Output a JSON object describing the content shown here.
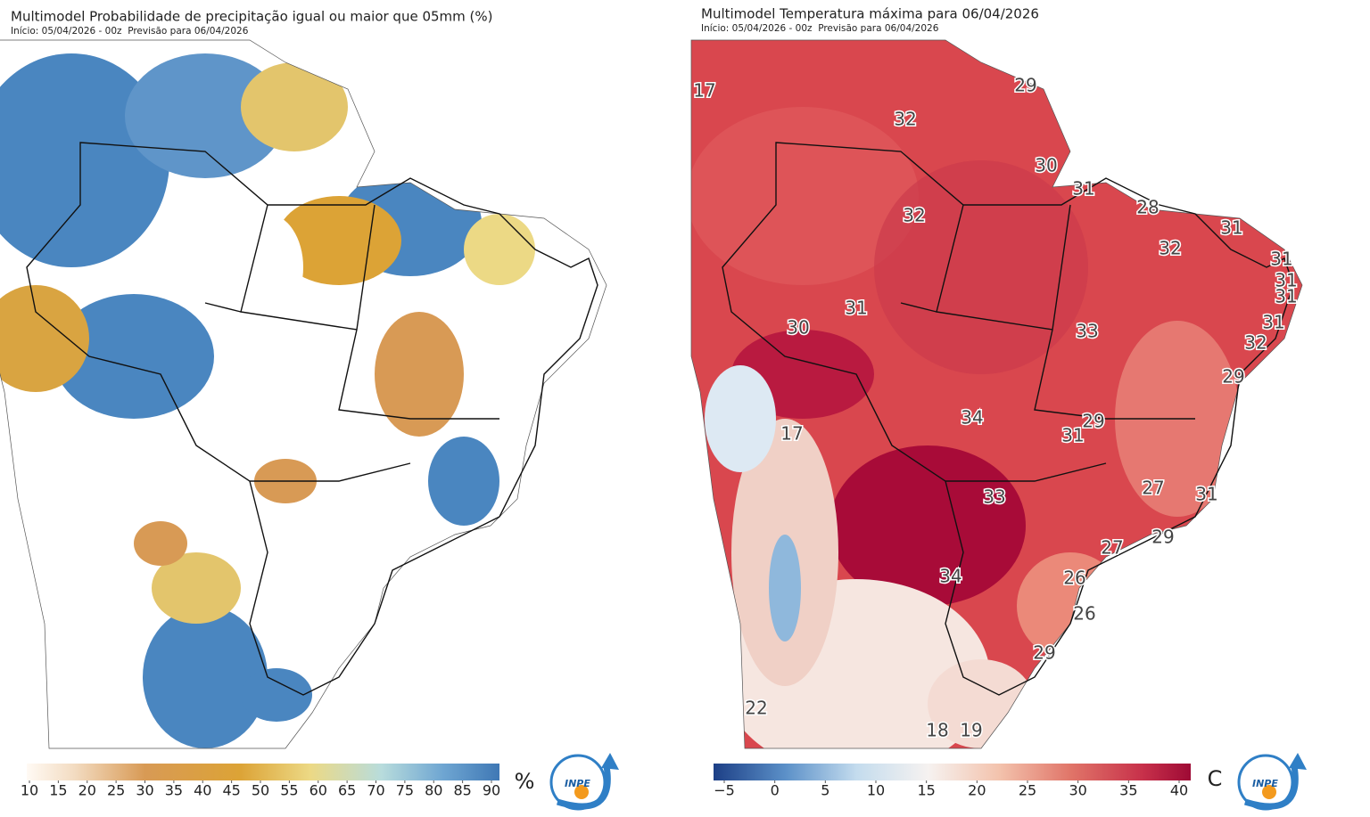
{
  "panels": [
    {
      "title": "Multimodel Probabilidade de precipitação igual ou maior que 05mm (%)",
      "subtitle": "Início: 05/04/2026 - 00z  Previsão para 06/04/2026",
      "colorbar": {
        "ticks": [
          10,
          15,
          20,
          25,
          30,
          35,
          40,
          45,
          50,
          55,
          60,
          65,
          70,
          75,
          80,
          85,
          90
        ],
        "unit": "%"
      },
      "logo": "INPE"
    },
    {
      "title": "Multimodel Temperatura máxima para 06/04/2026",
      "subtitle": "Início: 05/04/2026 - 00z  Previsão para 06/04/2026",
      "colorbar": {
        "ticks": [
          {
            "value": -5,
            "label": "−5"
          },
          0,
          5,
          10,
          15,
          20,
          25,
          30,
          35,
          40
        ],
        "unit": "C"
      },
      "logo": "INPE",
      "map_labels": [
        17,
        29,
        32,
        30,
        31,
        28,
        32,
        31,
        32,
        31,
        31,
        31,
        31,
        30,
        33,
        31,
        32,
        29,
        34,
        29,
        31,
        17,
        27,
        33,
        31,
        29,
        27,
        34,
        26,
        26,
        29,
        22,
        18,
        19
      ]
    }
  ]
}
